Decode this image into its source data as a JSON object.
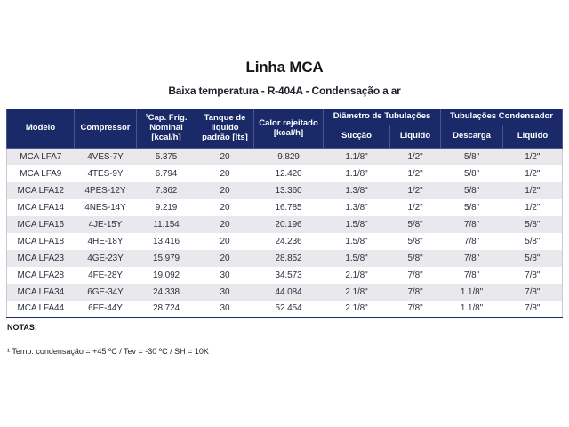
{
  "page": {
    "title": "Linha MCA",
    "subtitle": "Baixa temperatura - R-404A - Condensação a ar",
    "notes_label": "NOTAS:",
    "note_1": "¹ Temp. condensação = +45 ºC / Tev = -30 ºC / SH = 10K"
  },
  "colors": {
    "header_bg": "#1a2a68",
    "header_line": "#4a5590",
    "row_alt": "#e8e8ed",
    "body_text": "#30303a"
  },
  "table": {
    "columns": [
      "Modelo",
      "Compressor",
      "¹Cap. Frig. Nominal [kcal/h]",
      "Tanque de liquido padrão [lts]",
      "Calor rejeitado [kcal/h]"
    ],
    "groups": [
      {
        "label": "Diãmetro de Tubulações",
        "children": [
          "Sucção",
          "Liquido"
        ]
      },
      {
        "label": "Tubulações Condensador",
        "children": [
          "Descarga",
          "Liquido"
        ]
      }
    ],
    "rows": [
      [
        "MCA LFA7",
        "4VES-7Y",
        "5.375",
        "20",
        "9.829",
        "1.1/8\"",
        "1/2\"",
        "5/8\"",
        "1/2\""
      ],
      [
        "MCA LFA9",
        "4TES-9Y",
        "6.794",
        "20",
        "12.420",
        "1.1/8\"",
        "1/2\"",
        "5/8\"",
        "1/2\""
      ],
      [
        "MCA LFA12",
        "4PES-12Y",
        "7.362",
        "20",
        "13.360",
        "1.3/8\"",
        "1/2\"",
        "5/8\"",
        "1/2\""
      ],
      [
        "MCA LFA14",
        "4NES-14Y",
        "9.219",
        "20",
        "16.785",
        "1.3/8\"",
        "1/2\"",
        "5/8\"",
        "1/2\""
      ],
      [
        "MCA LFA15",
        "4JE-15Y",
        "11.154",
        "20",
        "20.196",
        "1.5/8\"",
        "5/8\"",
        "7/8\"",
        "5/8\""
      ],
      [
        "MCA LFA18",
        "4HE-18Y",
        "13.416",
        "20",
        "24.236",
        "1.5/8\"",
        "5/8\"",
        "7/8\"",
        "5/8\""
      ],
      [
        "MCA LFA23",
        "4GE-23Y",
        "15.979",
        "20",
        "28.852",
        "1.5/8\"",
        "5/8\"",
        "7/8\"",
        "5/8\""
      ],
      [
        "MCA LFA28",
        "4FE-28Y",
        "19.092",
        "30",
        "34.573",
        "2.1/8\"",
        "7/8\"",
        "7/8\"",
        "7/8\""
      ],
      [
        "MCA LFA34",
        "6GE-34Y",
        "24.338",
        "30",
        "44.084",
        "2.1/8\"",
        "7/8\"",
        "1.1/8\"",
        "7/8\""
      ],
      [
        "MCA LFA44",
        "6FE-44Y",
        "28.724",
        "30",
        "52.454",
        "2.1/8\"",
        "7/8\"",
        "1.1/8\"",
        "7/8\""
      ]
    ]
  }
}
